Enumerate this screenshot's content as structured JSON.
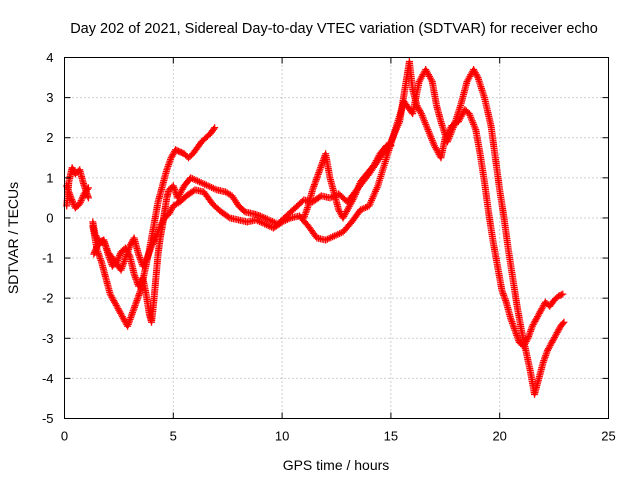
{
  "chart_data": {
    "type": "scatter",
    "title": "Day 202 of 2021, Sidereal Day-to-day VTEC variation (SDTVAR) for receiver echo",
    "xlabel": "GPS time / hours",
    "ylabel": "SDTVAR / TECUs",
    "xlim": [
      0,
      25
    ],
    "ylim": [
      -5,
      4
    ],
    "xticks": [
      0,
      5,
      10,
      15,
      20,
      25
    ],
    "yticks": [
      -5,
      -4,
      -3,
      -2,
      -1,
      0,
      1,
      2,
      3,
      4
    ],
    "xtick_labels": [
      "0",
      "5",
      "10",
      "15",
      "20",
      "25"
    ],
    "ytick_labels": [
      "-5",
      "-4",
      "-3",
      "-2",
      "-1",
      "0",
      "1",
      "2",
      "3",
      "4"
    ],
    "grid": true,
    "legend": "none",
    "marker": "plus",
    "color": "#ff0000",
    "series": [
      {
        "values": [
          [
            0.1,
            0.3
          ],
          [
            0.2,
            0.9
          ],
          [
            0.35,
            1.25
          ],
          [
            0.5,
            1.1
          ],
          [
            0.7,
            1.2
          ],
          [
            0.85,
            0.9
          ],
          [
            1.0,
            0.65
          ],
          [
            1.1,
            0.5
          ]
        ]
      },
      {
        "values": [
          [
            0.1,
            0.8
          ],
          [
            0.3,
            0.5
          ],
          [
            0.5,
            0.25
          ],
          [
            0.7,
            0.35
          ],
          [
            0.9,
            0.6
          ],
          [
            1.1,
            0.75
          ]
        ]
      },
      {
        "values": [
          [
            1.3,
            -0.1
          ],
          [
            1.4,
            -0.4
          ],
          [
            1.6,
            -0.6
          ],
          [
            1.8,
            -0.55
          ],
          [
            2.0,
            -0.9
          ],
          [
            2.2,
            -1.2
          ],
          [
            2.4,
            -1.1
          ],
          [
            2.6,
            -0.85
          ],
          [
            2.8,
            -0.75
          ],
          [
            3.0,
            -0.95
          ],
          [
            3.2,
            -1.4
          ],
          [
            3.4,
            -1.7
          ],
          [
            3.6,
            -1.5
          ],
          [
            3.75,
            -1.9
          ],
          [
            3.9,
            -2.4
          ],
          [
            4.0,
            -2.6
          ],
          [
            4.1,
            -2.1
          ],
          [
            4.2,
            -1.5
          ],
          [
            4.3,
            -0.9
          ],
          [
            4.4,
            -0.5
          ],
          [
            4.5,
            -0.2
          ],
          [
            4.6,
            0.15
          ],
          [
            4.7,
            0.5
          ],
          [
            4.8,
            0.7
          ],
          [
            5.0,
            0.8
          ],
          [
            5.2,
            0.5
          ],
          [
            5.5,
            0.8
          ],
          [
            5.8,
            1.0
          ],
          [
            6.2,
            0.9
          ],
          [
            6.6,
            0.8
          ],
          [
            7.0,
            0.7
          ],
          [
            7.4,
            0.65
          ],
          [
            7.7,
            0.55
          ],
          [
            8.0,
            0.3
          ],
          [
            8.3,
            0.15
          ],
          [
            8.7,
            0.1
          ],
          [
            9.0,
            0.05
          ],
          [
            9.4,
            -0.05
          ],
          [
            9.8,
            -0.15
          ],
          [
            10.2,
            0.05
          ],
          [
            10.6,
            0.25
          ],
          [
            11.0,
            0.45
          ],
          [
            11.4,
            0.4
          ],
          [
            11.8,
            0.55
          ],
          [
            12.2,
            0.5
          ],
          [
            12.6,
            0.6
          ],
          [
            13.0,
            0.4
          ],
          [
            13.5,
            0.75
          ],
          [
            14.0,
            1.1
          ],
          [
            14.5,
            1.5
          ],
          [
            15.0,
            1.9
          ],
          [
            15.4,
            2.4
          ],
          [
            15.7,
            3.4
          ],
          [
            15.85,
            3.9
          ],
          [
            16.0,
            3.2
          ],
          [
            16.2,
            2.8
          ],
          [
            16.4,
            2.6
          ],
          [
            16.7,
            2.2
          ],
          [
            17.0,
            1.8
          ],
          [
            17.3,
            1.5
          ],
          [
            17.5,
            2.0
          ],
          [
            17.8,
            2.3
          ],
          [
            18.1,
            2.4
          ],
          [
            18.4,
            2.7
          ],
          [
            18.6,
            2.6
          ],
          [
            18.9,
            2.2
          ],
          [
            19.1,
            1.6
          ],
          [
            19.3,
            0.9
          ],
          [
            19.5,
            0.1
          ],
          [
            19.7,
            -0.6
          ],
          [
            19.9,
            -1.2
          ],
          [
            20.1,
            -1.8
          ],
          [
            20.3,
            -2.1
          ],
          [
            20.5,
            -2.5
          ],
          [
            20.7,
            -2.8
          ],
          [
            20.9,
            -3.1
          ],
          [
            21.1,
            -3.2
          ],
          [
            21.3,
            -3.0
          ],
          [
            21.5,
            -2.7
          ],
          [
            21.7,
            -2.5
          ],
          [
            21.9,
            -2.3
          ],
          [
            22.1,
            -2.1
          ],
          [
            22.3,
            -2.2
          ],
          [
            22.5,
            -2.05
          ],
          [
            22.7,
            -1.95
          ],
          [
            22.9,
            -1.9
          ]
        ]
      },
      {
        "values": [
          [
            1.35,
            -0.9
          ],
          [
            1.5,
            -0.7
          ],
          [
            1.8,
            -0.55
          ],
          [
            2.0,
            -0.85
          ],
          [
            2.2,
            -1.0
          ],
          [
            2.4,
            -1.15
          ],
          [
            2.6,
            -1.3
          ],
          [
            2.8,
            -1.0
          ],
          [
            3.0,
            -0.7
          ],
          [
            3.2,
            -0.5
          ],
          [
            3.4,
            -0.9
          ],
          [
            3.6,
            -1.2
          ],
          [
            3.8,
            -1.0
          ],
          [
            4.0,
            -0.7
          ],
          [
            4.2,
            -0.5
          ],
          [
            4.4,
            -0.2
          ],
          [
            4.6,
            0.0
          ],
          [
            4.8,
            0.1
          ],
          [
            5.0,
            0.3
          ],
          [
            5.3,
            0.4
          ],
          [
            5.6,
            0.55
          ],
          [
            6.0,
            0.7
          ],
          [
            6.4,
            0.65
          ],
          [
            6.8,
            0.35
          ],
          [
            7.2,
            0.15
          ],
          [
            7.6,
            0.0
          ],
          [
            8.0,
            -0.05
          ],
          [
            8.4,
            -0.1
          ],
          [
            8.8,
            -0.05
          ],
          [
            9.2,
            -0.15
          ],
          [
            9.6,
            -0.25
          ],
          [
            10.0,
            -0.1
          ],
          [
            10.4,
            0.0
          ],
          [
            10.8,
            0.05
          ],
          [
            11.2,
            -0.2
          ],
          [
            11.6,
            -0.5
          ],
          [
            12.0,
            -0.55
          ],
          [
            12.4,
            -0.45
          ],
          [
            12.8,
            -0.35
          ],
          [
            13.2,
            -0.1
          ],
          [
            13.6,
            0.2
          ],
          [
            14.0,
            0.3
          ],
          [
            14.4,
            0.8
          ],
          [
            14.8,
            1.5
          ],
          [
            15.2,
            2.2
          ],
          [
            15.6,
            2.9
          ],
          [
            16.0,
            2.6
          ],
          [
            16.3,
            3.4
          ],
          [
            16.6,
            3.7
          ],
          [
            16.9,
            3.4
          ],
          [
            17.1,
            2.8
          ],
          [
            17.3,
            2.4
          ],
          [
            17.6,
            1.9
          ],
          [
            17.9,
            2.3
          ],
          [
            18.2,
            2.8
          ],
          [
            18.5,
            3.4
          ],
          [
            18.8,
            3.7
          ],
          [
            19.0,
            3.5
          ],
          [
            19.3,
            3.0
          ],
          [
            19.6,
            2.3
          ],
          [
            19.8,
            1.5
          ],
          [
            20.0,
            0.7
          ],
          [
            20.2,
            0.0
          ],
          [
            20.4,
            -0.8
          ],
          [
            20.6,
            -1.5
          ],
          [
            20.8,
            -2.2
          ],
          [
            21.0,
            -2.8
          ],
          [
            21.2,
            -3.3
          ],
          [
            21.4,
            -3.8
          ],
          [
            21.6,
            -4.4
          ],
          [
            21.8,
            -4.0
          ],
          [
            22.0,
            -3.6
          ],
          [
            22.2,
            -3.3
          ],
          [
            22.4,
            -3.1
          ],
          [
            22.6,
            -2.9
          ],
          [
            22.8,
            -2.7
          ],
          [
            22.95,
            -2.6
          ]
        ]
      },
      {
        "values": [
          [
            1.3,
            -0.2
          ],
          [
            1.5,
            -0.8
          ],
          [
            1.7,
            -1.1
          ],
          [
            1.9,
            -1.5
          ],
          [
            2.1,
            -1.9
          ],
          [
            2.3,
            -2.1
          ],
          [
            2.5,
            -2.3
          ],
          [
            2.7,
            -2.5
          ],
          [
            2.9,
            -2.7
          ],
          [
            3.1,
            -2.4
          ],
          [
            3.3,
            -2.1
          ],
          [
            3.5,
            -1.8
          ],
          [
            3.7,
            -1.3
          ],
          [
            3.9,
            -0.8
          ],
          [
            4.1,
            -0.2
          ],
          [
            4.3,
            0.4
          ],
          [
            4.5,
            0.8
          ],
          [
            4.7,
            1.2
          ],
          [
            4.9,
            1.5
          ],
          [
            5.1,
            1.7
          ],
          [
            5.3,
            1.65
          ],
          [
            5.5,
            1.6
          ],
          [
            5.7,
            1.5
          ],
          [
            5.9,
            1.6
          ],
          [
            6.1,
            1.75
          ],
          [
            6.3,
            1.9
          ],
          [
            6.5,
            2.0
          ],
          [
            6.7,
            2.1
          ],
          [
            6.9,
            2.25
          ]
        ]
      },
      {
        "values": [
          [
            11.0,
            0.0
          ],
          [
            11.2,
            0.3
          ],
          [
            11.4,
            0.7
          ],
          [
            11.6,
            1.0
          ],
          [
            11.8,
            1.3
          ],
          [
            12.0,
            1.6
          ],
          [
            12.2,
            1.0
          ],
          [
            12.4,
            0.6
          ],
          [
            12.6,
            0.2
          ],
          [
            12.8,
            0.0
          ],
          [
            13.0,
            0.2
          ],
          [
            13.3,
            0.5
          ],
          [
            13.6,
            0.9
          ],
          [
            13.9,
            1.1
          ],
          [
            14.2,
            1.3
          ],
          [
            14.5,
            1.6
          ],
          [
            14.8,
            1.8
          ],
          [
            15.0,
            1.8
          ]
        ]
      }
    ]
  }
}
